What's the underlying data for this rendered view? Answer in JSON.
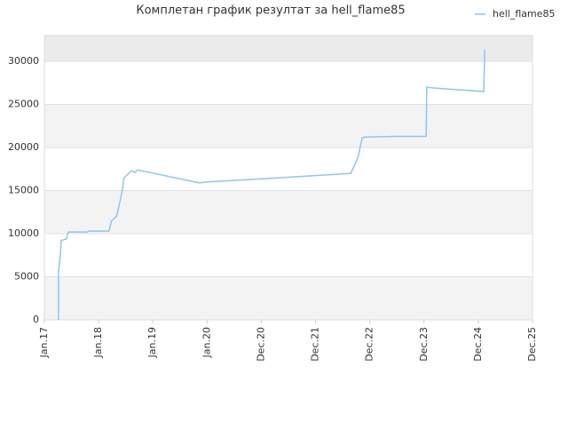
{
  "chart_data": {
    "type": "line",
    "title": "Комплетан график резултат за hell_flame85",
    "x": [
      0.26,
      0.26,
      0.29,
      0.31,
      0.41,
      0.44,
      0.79,
      0.82,
      1.19,
      1.24,
      1.33,
      1.39,
      1.44,
      1.47,
      1.54,
      1.6,
      1.67,
      1.72,
      2.86,
      2.98,
      4.09,
      5.65,
      5.78,
      5.86,
      5.89,
      6.46,
      7.04,
      7.05,
      7.2,
      8.1,
      8.12
    ],
    "series": [
      {
        "name": "hell_flame85",
        "color": "#8ec5f0",
        "values": [
          0,
          5700,
          7200,
          9200,
          9400,
          10200,
          10200,
          10300,
          10300,
          11500,
          12000,
          13600,
          15200,
          16500,
          16900,
          17300,
          17100,
          17400,
          15900,
          16000,
          16400,
          17000,
          18800,
          21100,
          21200,
          21300,
          21300,
          27000,
          26900,
          26500,
          31400
        ]
      }
    ],
    "xlim": [
      0,
      9
    ],
    "xticks": [
      {
        "value": 0,
        "label": "Jan.17"
      },
      {
        "value": 1,
        "label": "Jan.18"
      },
      {
        "value": 2,
        "label": "Jan.19"
      },
      {
        "value": 3,
        "label": "Jan.20"
      },
      {
        "value": 4,
        "label": "Dec.20"
      },
      {
        "value": 5,
        "label": "Dec.21"
      },
      {
        "value": 6,
        "label": "Dec.22"
      },
      {
        "value": 7,
        "label": "Dec.23"
      },
      {
        "value": 8,
        "label": "Dec.24"
      },
      {
        "value": 9,
        "label": "Dec.25"
      }
    ],
    "ylim": [
      0,
      33000
    ],
    "yticks": [
      0,
      5000,
      10000,
      15000,
      20000,
      25000,
      30000
    ],
    "grid": true,
    "legend": "top-right"
  }
}
